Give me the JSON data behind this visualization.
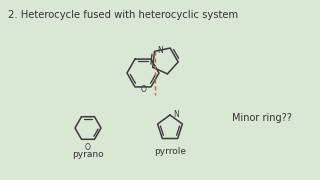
{
  "background_color": "#d9e8d4",
  "title": "2. Heterocycle fused with heterocyclic system",
  "title_fontsize": 7.2,
  "title_color": "#333333",
  "minor_ring_text": "Minor ring??",
  "minor_ring_fontsize": 7.0,
  "label_pyrano": "pyrano",
  "label_pyrrole": "pyrrole",
  "label_fontsize": 6.5,
  "dashed_color": "#cc6633",
  "ring_color": "#3a3a3a",
  "ring_linewidth": 1.1
}
